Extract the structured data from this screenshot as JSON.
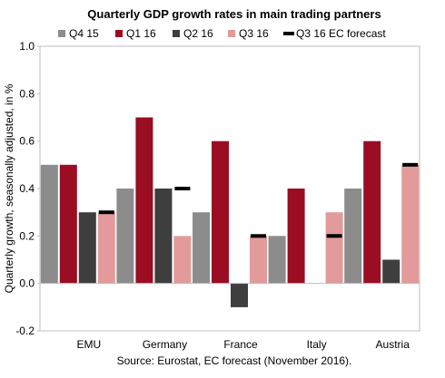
{
  "chart_data": {
    "type": "bar",
    "title": "Quarterly GDP growth rates in main trading partners",
    "ylabel": "Quarterly growth, seasonally adjusted, in %",
    "xlabel": "",
    "source": "Source: Eurostat, EC forecast (November 2016).",
    "categories": [
      "EMU",
      "Germany",
      "France",
      "Italy",
      "Austria"
    ],
    "ylim": [
      -0.2,
      1.0
    ],
    "yticks": [
      -0.2,
      0.0,
      0.2,
      0.4,
      0.6,
      0.8,
      1.0
    ],
    "ytick_labels": [
      "-0.2",
      "0.0",
      "0.2",
      "0.4",
      "0.6",
      "0.8",
      "1.0"
    ],
    "grid": false,
    "legend_position": "top",
    "series": [
      {
        "name": "Q4 15",
        "color": "#8c8c8c",
        "values": [
          0.5,
          0.4,
          0.3,
          0.2,
          0.4
        ]
      },
      {
        "name": "Q1 16",
        "color": "#9b0d23",
        "values": [
          0.5,
          0.7,
          0.6,
          0.4,
          0.6
        ]
      },
      {
        "name": "Q2 16",
        "color": "#3e3e3e",
        "values": [
          0.3,
          0.4,
          -0.1,
          0.0,
          0.1
        ]
      },
      {
        "name": "Q3 16",
        "color": "#e29a9a",
        "values": [
          0.3,
          0.2,
          0.2,
          0.3,
          0.5
        ]
      }
    ],
    "forecast": {
      "name": "Q3 16 EC forecast",
      "color": "#000000",
      "values": [
        0.3,
        0.4,
        0.2,
        0.2,
        0.5
      ]
    }
  }
}
